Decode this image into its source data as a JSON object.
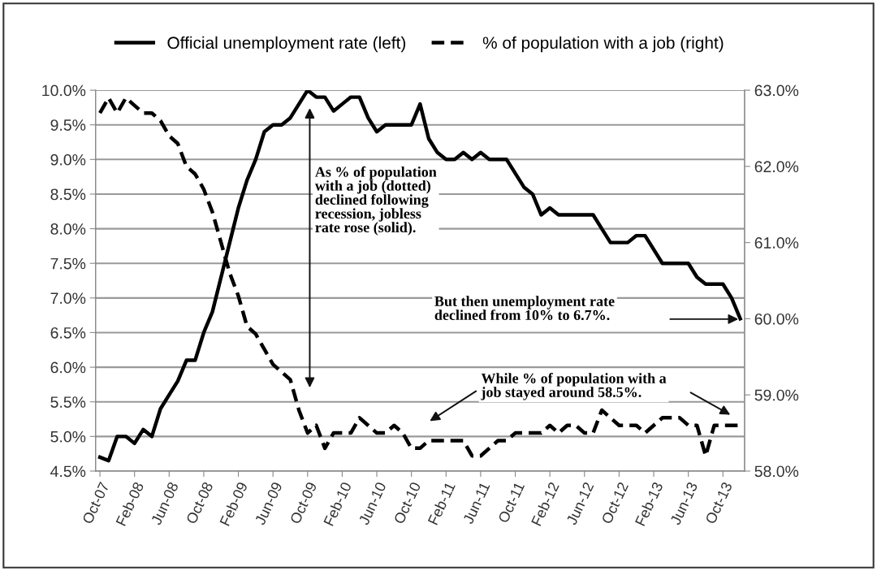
{
  "chart_data": {
    "type": "line",
    "categories": [
      "Oct-07",
      null,
      null,
      null,
      "Feb-08",
      null,
      null,
      null,
      "Jun-08",
      null,
      null,
      null,
      "Oct-08",
      null,
      null,
      null,
      "Feb-09",
      null,
      null,
      null,
      "Jun-09",
      null,
      null,
      null,
      "Oct-09",
      null,
      null,
      null,
      "Feb-10",
      null,
      null,
      null,
      "Jun-10",
      null,
      null,
      null,
      "Oct-10",
      null,
      null,
      null,
      "Feb-11",
      null,
      null,
      null,
      "Jun-11",
      null,
      null,
      null,
      "Oct-11",
      null,
      null,
      null,
      "Feb-12",
      null,
      null,
      null,
      "Jun-12",
      null,
      null,
      null,
      "Oct-12",
      null,
      null,
      null,
      "Feb-13",
      null,
      null,
      null,
      "Jun-13",
      null,
      null,
      null,
      "Oct-13",
      null,
      null
    ],
    "series": [
      {
        "name": "Official unemployment rate (left)",
        "color": "#000000",
        "line_style": "solid",
        "axis": "y",
        "values": [
          4.7,
          4.65,
          5.0,
          5.0,
          4.9,
          5.1,
          5.0,
          5.4,
          5.6,
          5.8,
          6.1,
          6.1,
          6.5,
          6.8,
          7.3,
          7.8,
          8.3,
          8.7,
          9.0,
          9.4,
          9.5,
          9.5,
          9.6,
          9.8,
          10.0,
          9.9,
          9.9,
          9.7,
          9.8,
          9.9,
          9.9,
          9.6,
          9.4,
          9.5,
          9.5,
          9.5,
          9.5,
          9.8,
          9.3,
          9.1,
          9.0,
          9.0,
          9.1,
          9.0,
          9.1,
          9.0,
          9.0,
          9.0,
          8.8,
          8.6,
          8.5,
          8.2,
          8.3,
          8.2,
          8.2,
          8.2,
          8.2,
          8.2,
          8.0,
          7.8,
          7.8,
          7.8,
          7.9,
          7.9,
          7.7,
          7.5,
          7.5,
          7.5,
          7.5,
          7.3,
          7.2,
          7.2,
          7.2,
          7.0,
          6.7
        ]
      },
      {
        "name": "% of population with a job (right)",
        "color": "#000000",
        "line_style": "dashed",
        "axis": "y2",
        "values": [
          62.7,
          62.9,
          62.7,
          62.9,
          62.8,
          62.7,
          62.7,
          62.6,
          62.4,
          62.3,
          62.0,
          61.9,
          61.7,
          61.4,
          61.0,
          60.6,
          60.3,
          59.9,
          59.8,
          59.6,
          59.4,
          59.3,
          59.2,
          58.8,
          58.5,
          58.6,
          58.3,
          58.5,
          58.5,
          58.5,
          58.7,
          58.6,
          58.5,
          58.5,
          58.6,
          58.5,
          58.3,
          58.3,
          58.4,
          58.4,
          58.4,
          58.4,
          58.4,
          58.2,
          58.2,
          58.3,
          58.4,
          58.4,
          58.5,
          58.5,
          58.5,
          58.5,
          58.6,
          58.5,
          58.6,
          58.6,
          58.5,
          58.5,
          58.8,
          58.7,
          58.6,
          58.6,
          58.6,
          58.5,
          58.6,
          58.7,
          58.7,
          58.7,
          58.6,
          58.6,
          58.2,
          58.6,
          58.6,
          58.6,
          58.6
        ]
      }
    ],
    "ylim": [
      4.5,
      10.0
    ],
    "yticks": [
      {
        "value": 4.5,
        "label": "4.5%"
      },
      {
        "value": 5.0,
        "label": "5.0%"
      },
      {
        "value": 5.5,
        "label": "5.5%"
      },
      {
        "value": 6.0,
        "label": "6.0%"
      },
      {
        "value": 6.5,
        "label": "6.5%"
      },
      {
        "value": 7.0,
        "label": "7.0%"
      },
      {
        "value": 7.5,
        "label": "7.5%"
      },
      {
        "value": 8.0,
        "label": "8.0%"
      },
      {
        "value": 8.5,
        "label": "8.5%"
      },
      {
        "value": 9.0,
        "label": "9.0%"
      },
      {
        "value": 9.5,
        "label": "9.5%"
      },
      {
        "value": 10.0,
        "label": "10.0%"
      }
    ],
    "y2lim": [
      58.0,
      63.0
    ],
    "y2ticks": [
      {
        "value": 58,
        "label": "58.0%"
      },
      {
        "value": 59,
        "label": "59.0%"
      },
      {
        "value": 60,
        "label": "60.0%"
      },
      {
        "value": 61,
        "label": "61.0%"
      },
      {
        "value": 62,
        "label": "62.0%"
      },
      {
        "value": 63,
        "label": "63.0%"
      }
    ],
    "grid": "y",
    "legend": "top",
    "annotations": [
      "As % of population\nwith a job (dotted)\ndeclined following\nrecession, jobless\nrate rose (solid).",
      "But then unemployment rate\ndeclined from 10% to 6.7%.",
      "While % of population with a\njob stayed around 58.5%."
    ]
  }
}
